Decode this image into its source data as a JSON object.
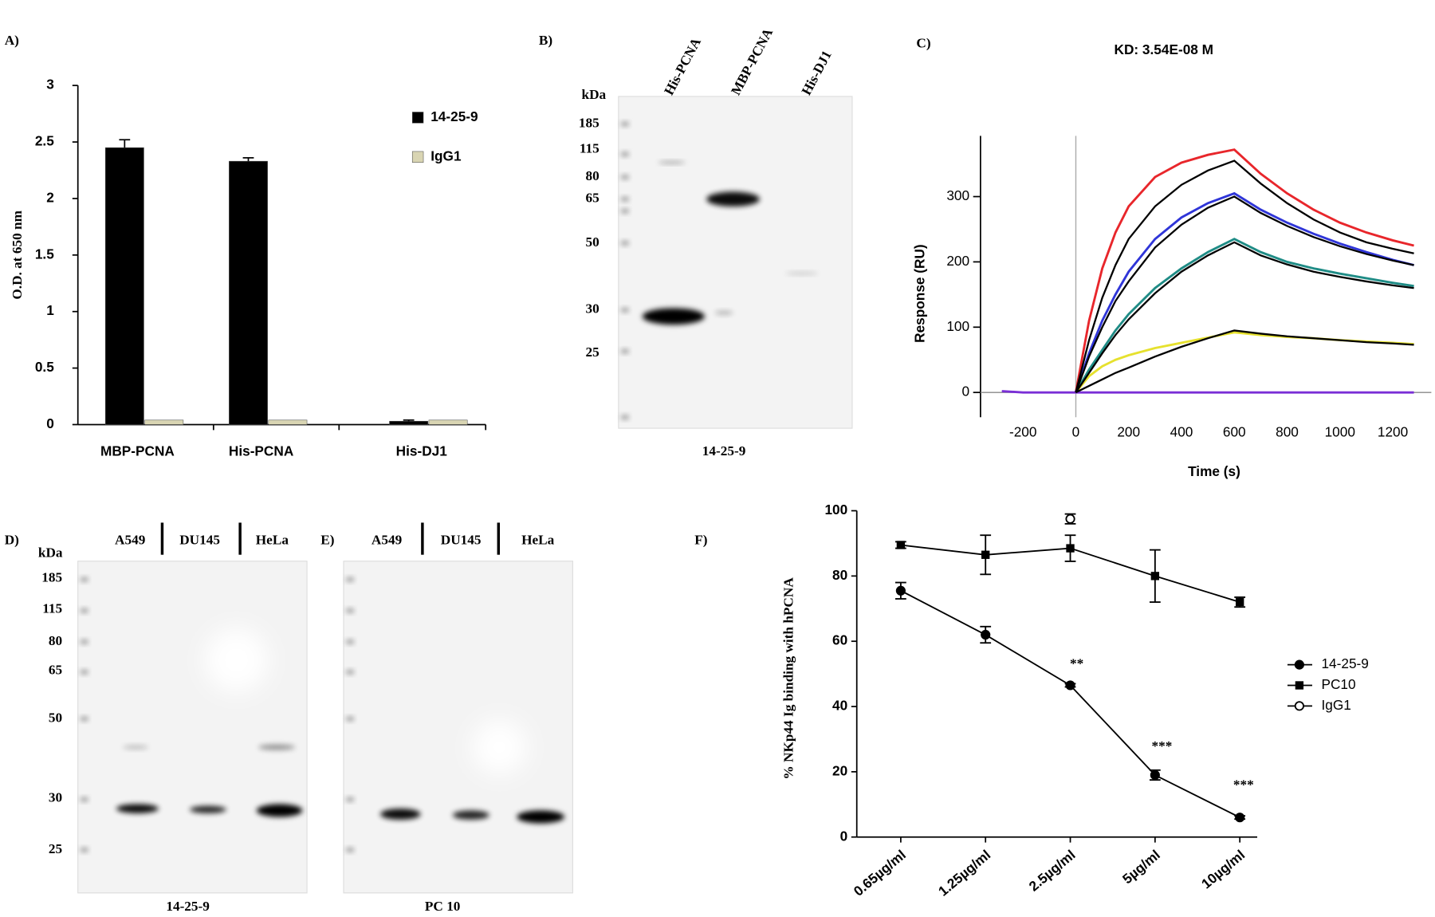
{
  "panel_labels": [
    "A)",
    "B)",
    "C)",
    "D)",
    "E)",
    "F)"
  ],
  "chart_data": [
    {
      "type": "bar",
      "ylabel": "O.D. at 650 nm",
      "categories": [
        "MBP-PCNA",
        "His-PCNA",
        "His-DJ1"
      ],
      "series": [
        {
          "name": "14-25-9",
          "color": "#000000",
          "values": [
            2.45,
            2.33,
            0.03
          ],
          "errors": [
            0.07,
            0.03,
            0.01
          ]
        },
        {
          "name": "IgG1",
          "color": "#d9d5b3",
          "values": [
            0.04,
            0.04,
            0.04
          ]
        }
      ],
      "ylim": [
        0,
        3
      ],
      "yticks": [
        0,
        0.5,
        1,
        1.5,
        2,
        2.5,
        3
      ]
    },
    {
      "type": "line",
      "title": "KD: 3.54E-08 M",
      "xlabel": "Time (s)",
      "ylabel": "Response (RU)",
      "x": [
        -280,
        -200,
        -100,
        0,
        50,
        100,
        150,
        200,
        300,
        400,
        500,
        600,
        700,
        800,
        900,
        1000,
        1100,
        1200,
        1280
      ],
      "series": [
        {
          "color": "#e8262b",
          "values": [
            null,
            null,
            null,
            0,
            110,
            190,
            245,
            285,
            330,
            352,
            364,
            372,
            335,
            305,
            280,
            260,
            245,
            233,
            225
          ]
        },
        {
          "color": "#2f35d8",
          "values": [
            null,
            null,
            null,
            0,
            60,
            110,
            150,
            185,
            235,
            268,
            290,
            305,
            280,
            260,
            243,
            228,
            215,
            203,
            195
          ]
        },
        {
          "color": "#1f8c86",
          "values": [
            null,
            null,
            null,
            0,
            35,
            65,
            95,
            120,
            160,
            190,
            215,
            235,
            215,
            200,
            190,
            182,
            175,
            168,
            163
          ]
        },
        {
          "color": "#e6e12e",
          "values": [
            null,
            null,
            null,
            0,
            25,
            40,
            50,
            57,
            68,
            76,
            84,
            92,
            88,
            85,
            83,
            80,
            78,
            76,
            74
          ]
        },
        {
          "color": "#7a2fd6",
          "values": [
            2,
            0,
            0,
            0,
            0,
            0,
            0,
            0,
            0,
            0,
            0,
            0,
            0,
            0,
            0,
            0,
            0,
            0,
            0
          ]
        },
        {
          "color": "#000000",
          "values": [
            null,
            null,
            null,
            0,
            80,
            145,
            195,
            235,
            285,
            318,
            340,
            355,
            320,
            290,
            265,
            245,
            230,
            220,
            213
          ]
        },
        {
          "color": "#000000",
          "values": [
            null,
            null,
            null,
            0,
            55,
            100,
            140,
            170,
            222,
            257,
            283,
            300,
            275,
            255,
            238,
            224,
            212,
            202,
            195
          ]
        },
        {
          "color": "#000000",
          "values": [
            null,
            null,
            null,
            0,
            30,
            60,
            88,
            112,
            152,
            185,
            210,
            230,
            210,
            196,
            185,
            177,
            170,
            164,
            160
          ]
        },
        {
          "color": "#000000",
          "values": [
            null,
            null,
            null,
            0,
            10,
            20,
            30,
            38,
            55,
            70,
            83,
            95,
            90,
            86,
            83,
            80,
            77,
            75,
            73
          ]
        }
      ],
      "xlim": [
        -361,
        1346
      ],
      "xticks": [
        -200,
        0,
        200,
        400,
        600,
        800,
        1000,
        1200
      ],
      "ylim": [
        -38,
        393
      ],
      "yticks": [
        0,
        100,
        200,
        300
      ]
    },
    {
      "type": "line",
      "ylabel": "% NKp44 Ig binding with hPCNA",
      "categories": [
        "0.65µg/ml",
        "1.25µg/ml",
        "2.5µg/ml",
        "5µg/ml",
        "10µg/ml"
      ],
      "series": [
        {
          "name": "14-25-9",
          "marker": "circle",
          "values": [
            75.5,
            62,
            46.5,
            19,
            6
          ],
          "errors": [
            2.5,
            2.5,
            0.5,
            1.5,
            0.5
          ]
        },
        {
          "name": "PC10",
          "marker": "square",
          "values": [
            89.5,
            86.5,
            88.5,
            80,
            72
          ],
          "errors": [
            1,
            6,
            4,
            8,
            1.5
          ]
        },
        {
          "name": "IgG1",
          "marker": "open-circle",
          "values": [
            null,
            null,
            97.5,
            null,
            null
          ],
          "errors": [
            null,
            null,
            1.5,
            null,
            null
          ]
        }
      ],
      "annotations": [
        "**",
        "***",
        "***"
      ],
      "ylim": [
        0,
        100
      ],
      "yticks": [
        0,
        20,
        40,
        60,
        80,
        100
      ]
    }
  ],
  "blots": [
    {
      "lanes": [
        "His-PCNA",
        "MBP-PCNA",
        "His-DJ1"
      ],
      "marker_unit": "kDa",
      "markers": [
        185,
        115,
        80,
        65,
        50,
        30,
        25
      ],
      "caption": "14-25-9"
    },
    {
      "lanes": [
        "A549",
        "DU145",
        "HeLa"
      ],
      "marker_unit": "kDa",
      "markers": [
        185,
        115,
        80,
        65,
        50,
        30,
        25
      ],
      "caption": "14-25-9"
    },
    {
      "lanes": [
        "A549",
        "DU145",
        "HeLa"
      ],
      "caption": "PC 10"
    }
  ]
}
